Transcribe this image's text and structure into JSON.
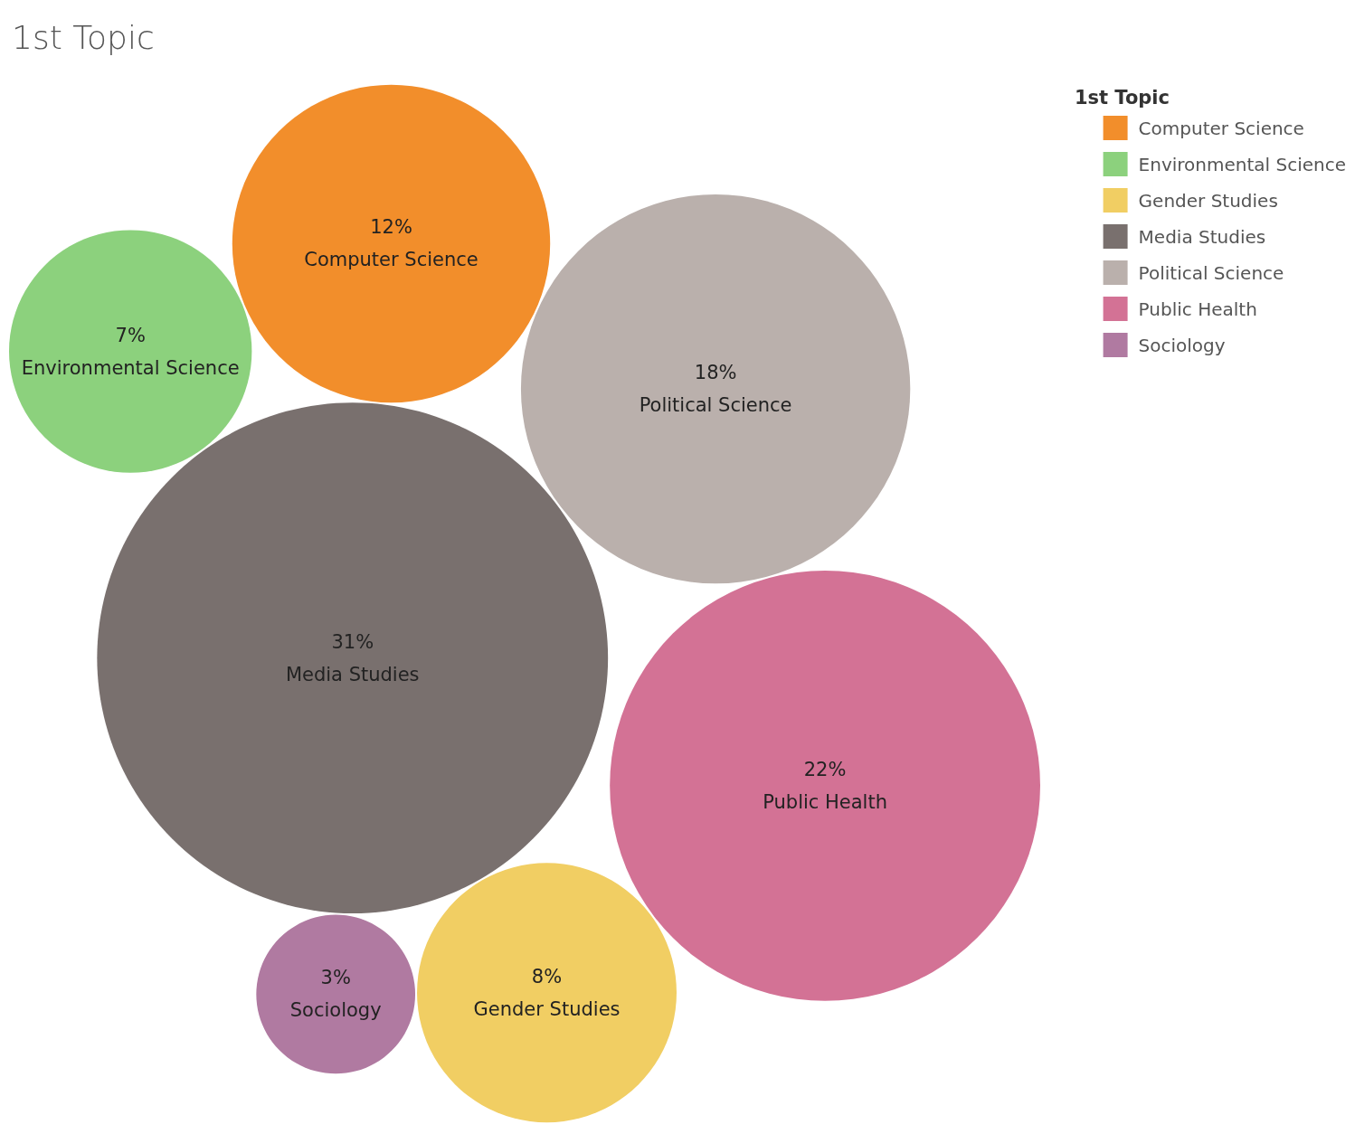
{
  "chart_data": {
    "type": "other",
    "title": "1st Topic",
    "legend_title": "1st Topic",
    "categories": [
      "Computer Science",
      "Environmental Science",
      "Gender Studies",
      "Media Studies",
      "Political Science",
      "Public Health",
      "Sociology"
    ],
    "values": [
      12,
      7,
      8,
      31,
      18,
      22,
      3
    ],
    "value_labels": [
      "12%",
      "7%",
      "8%",
      "31%",
      "18%",
      "22%",
      "3%"
    ],
    "colors": [
      "#f28e2b",
      "#8cd17d",
      "#f1ce63",
      "#79706e",
      "#bab0ac",
      "#d37295",
      "#b07aa1"
    ]
  }
}
